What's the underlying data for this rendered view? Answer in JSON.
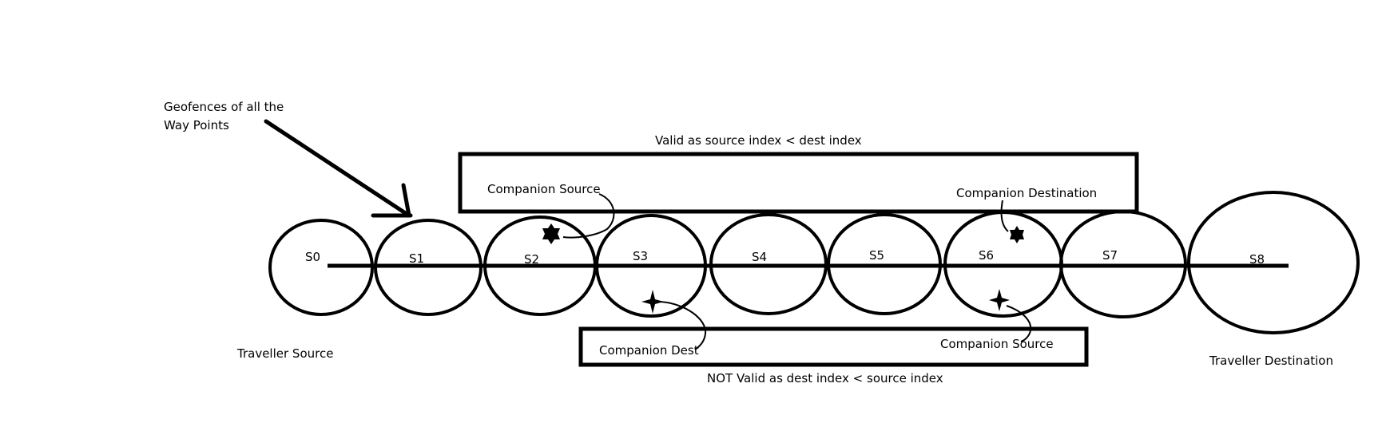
{
  "annotation": {
    "line1": "Geofences of all the",
    "line2": "Way Points"
  },
  "waypoints": [
    "S0",
    "S1",
    "S2",
    "S3",
    "S4",
    "S5",
    "S6",
    "S7",
    "S8"
  ],
  "endpoints": {
    "source": "Traveller Source",
    "destination": "Traveller Destination"
  },
  "valid_case": {
    "caption": "Valid as source index < dest index",
    "source_label": "Companion Source",
    "dest_label": "Companion Destination"
  },
  "invalid_case": {
    "caption": "NOT Valid as dest index < source index",
    "dest_label": "Companion Dest",
    "source_label": "Companion Source"
  }
}
